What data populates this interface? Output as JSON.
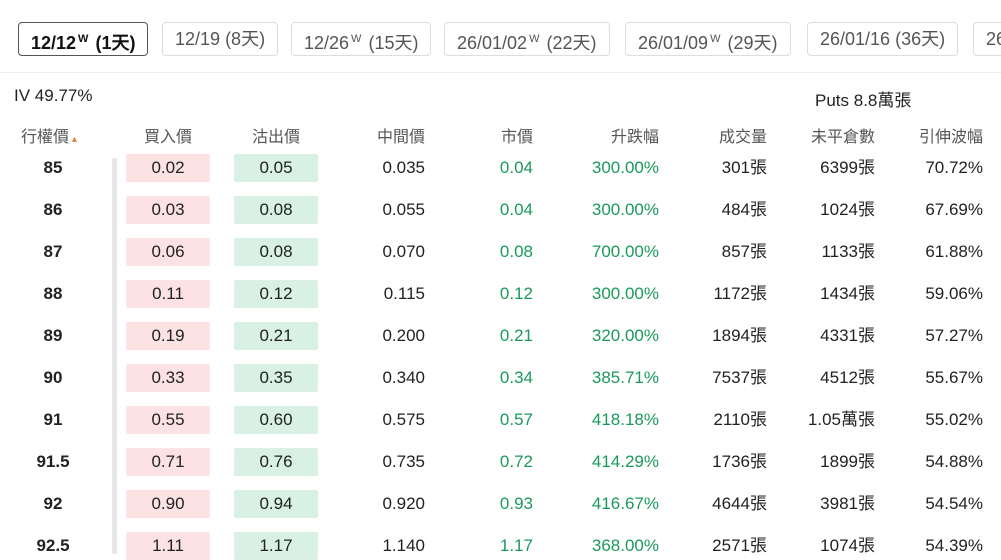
{
  "tabs": [
    {
      "date": "12/12",
      "week": "W",
      "days": "(1天)",
      "selected": true
    },
    {
      "date": "12/19",
      "days": "(8天)"
    },
    {
      "date": "12/26",
      "week": "W",
      "days": "(15天)"
    },
    {
      "date": "26/01/02",
      "week": "W",
      "days": "(22天)"
    },
    {
      "date": "26/01/09",
      "week": "W",
      "days": "(29天)"
    },
    {
      "date": "26/01/16",
      "days": "(36天)"
    },
    {
      "date": "26"
    }
  ],
  "iv": "IV 49.77%",
  "puts": "Puts 8.8萬張",
  "table": {
    "headers": [
      "行權價",
      "買入價",
      "沽出價",
      "中間價",
      "市價",
      "升跌幅",
      "成交量",
      "未平倉數",
      "引伸波幅"
    ],
    "rows": [
      [
        "85",
        "0.02",
        "0.05",
        "0.035",
        "0.04",
        "300.00%",
        "301張",
        "6399張",
        "70.72%"
      ],
      [
        "86",
        "0.03",
        "0.08",
        "0.055",
        "0.04",
        "300.00%",
        "484張",
        "1024張",
        "67.69%"
      ],
      [
        "87",
        "0.06",
        "0.08",
        "0.070",
        "0.08",
        "700.00%",
        "857張",
        "1133張",
        "61.88%"
      ],
      [
        "88",
        "0.11",
        "0.12",
        "0.115",
        "0.12",
        "300.00%",
        "1172張",
        "1434張",
        "59.06%"
      ],
      [
        "89",
        "0.19",
        "0.21",
        "0.200",
        "0.21",
        "320.00%",
        "1894張",
        "4331張",
        "57.27%"
      ],
      [
        "90",
        "0.33",
        "0.35",
        "0.340",
        "0.34",
        "385.71%",
        "7537張",
        "4512張",
        "55.67%"
      ],
      [
        "91",
        "0.55",
        "0.60",
        "0.575",
        "0.57",
        "418.18%",
        "2110張",
        "1.05萬張",
        "55.02%"
      ],
      [
        "91.5",
        "0.71",
        "0.76",
        "0.735",
        "0.72",
        "414.29%",
        "1736張",
        "1899張",
        "54.88%"
      ],
      [
        "92",
        "0.90",
        "0.94",
        "0.920",
        "0.93",
        "416.67%",
        "4644張",
        "3981張",
        "54.54%"
      ],
      [
        "92.5",
        "1.11",
        "1.17",
        "1.140",
        "1.17",
        "368.00%",
        "2571張",
        "1074張",
        "54.39%"
      ]
    ]
  }
}
